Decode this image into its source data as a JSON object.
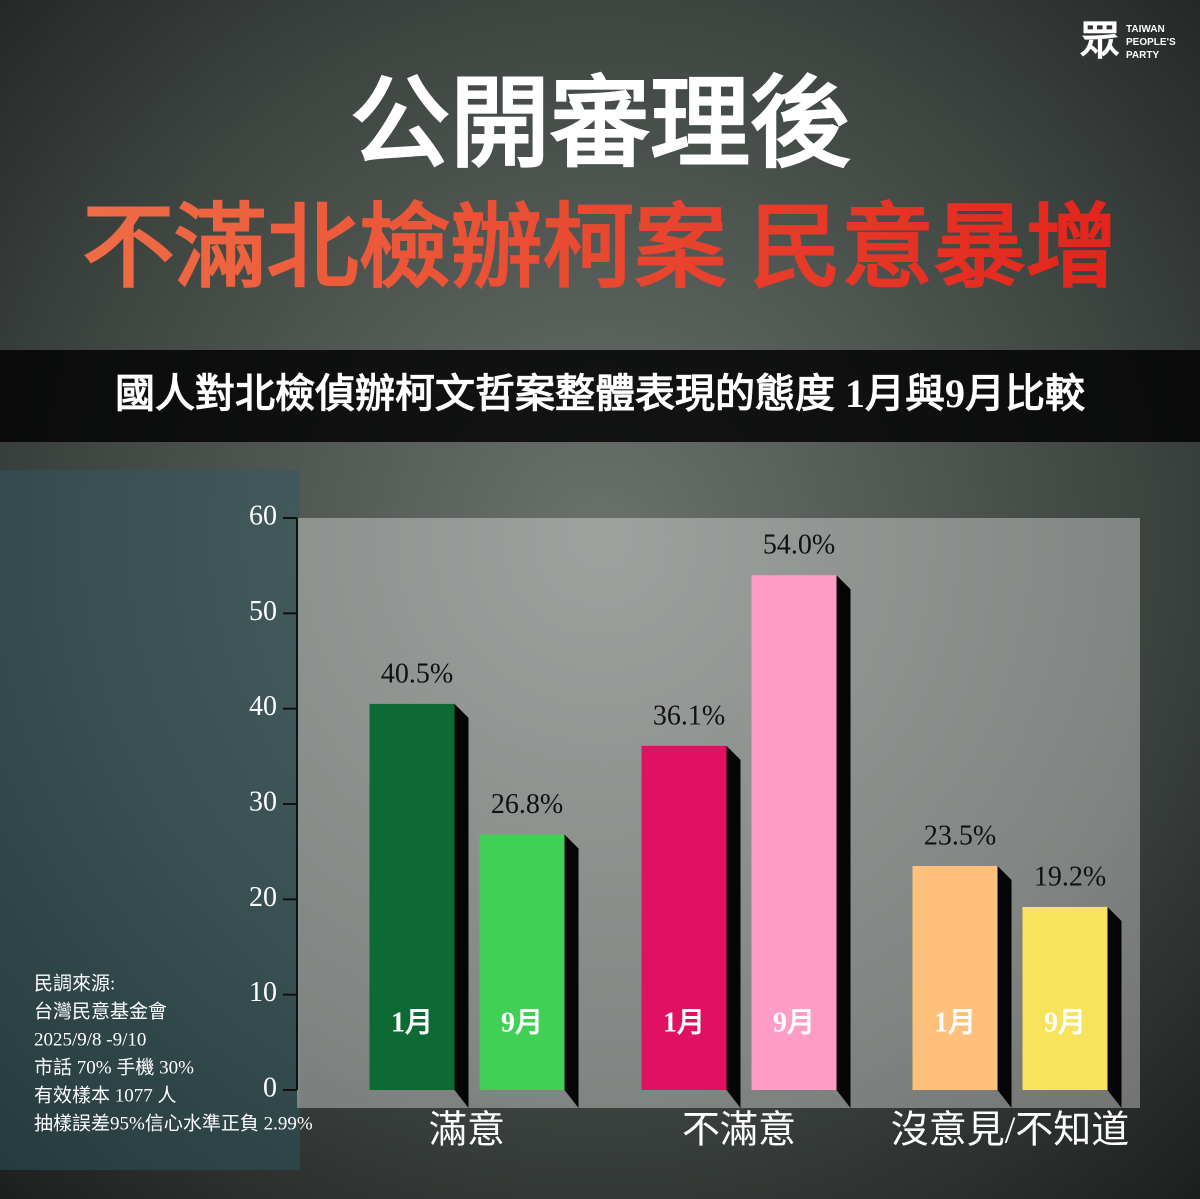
{
  "header": {
    "logo": "眾",
    "party": [
      "TAIWAN",
      "PEOPLE'S",
      "PARTY"
    ],
    "title": "公開審理後",
    "headline": "不滿北檢辦柯案 民意暴增",
    "subtitle": "國人對北檢偵辦柯文哲案整體表現的態度 1月與9月比較"
  },
  "source_notes": [
    "民調來源:",
    "台灣民意基金會",
    "2025/9/8 -9/10",
    "市話 70% 手機 30%",
    "有效樣本 1077 人",
    "抽樣誤差95%信心水準正負 2.99%"
  ],
  "chart_data": {
    "type": "bar",
    "categories": [
      "滿意",
      "不滿意",
      "沒意見/不知道"
    ],
    "series": [
      {
        "name": "1月",
        "colors": [
          "#0d6a34",
          "#e01062",
          "#ffc07c"
        ],
        "values": [
          40.5,
          36.1,
          23.5
        ],
        "value_labels": [
          "40.5%",
          "36.1%",
          "23.5%"
        ]
      },
      {
        "name": "9月",
        "colors": [
          "#3fd055",
          "#ff9dc6",
          "#f8e45c"
        ],
        "values": [
          26.8,
          54,
          19.2
        ],
        "value_labels": [
          "26.8%",
          "54.0%",
          "19.2%"
        ]
      }
    ],
    "ylim": [
      0,
      60
    ],
    "yticks": [
      0,
      10,
      20,
      30,
      40,
      50,
      60
    ]
  }
}
